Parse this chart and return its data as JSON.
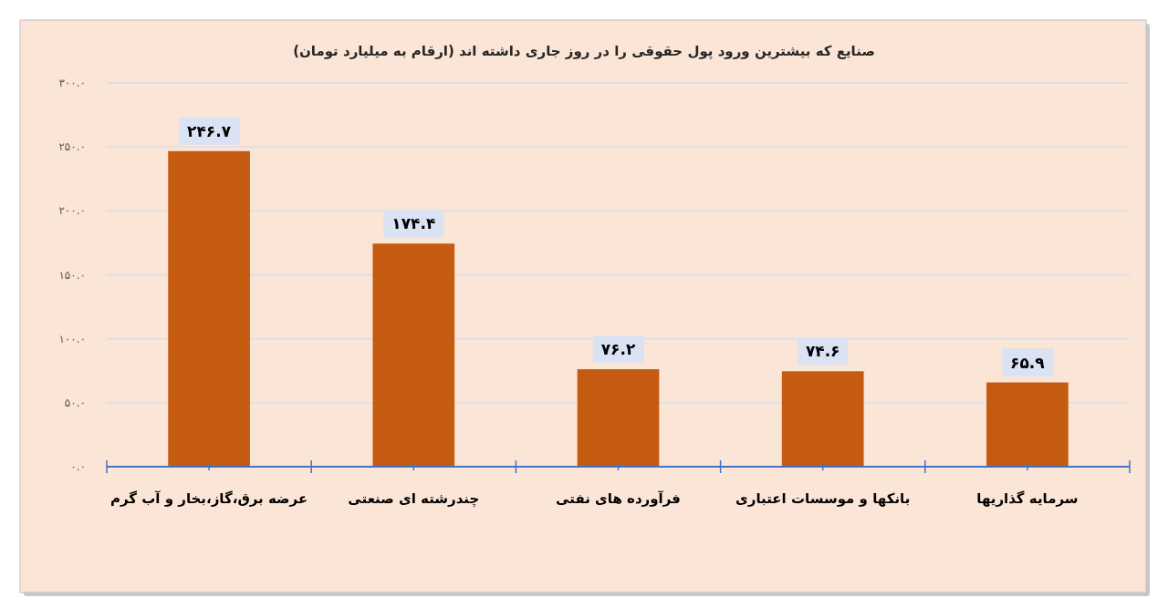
{
  "chart_data": {
    "type": "bar",
    "title": "صنایع که بیشترین ورود پول حقوقی را در روز جاری داشته اند (ارقام به میلیارد تومان)",
    "categories": [
      "عرضه برق،گاز،بخار و آب گرم",
      "چندرشته ای صنعتی",
      "فرآورده های نفتی",
      "بانکها و موسسات اعتباری",
      "سرمایه گذاریها"
    ],
    "values": [
      246.7,
      174.4,
      76.2,
      74.6,
      65.9
    ],
    "value_labels": [
      "۲۴۶.۷",
      "۱۷۴.۴",
      "۷۶.۲",
      "۷۴.۶",
      "۶۵.۹"
    ],
    "color": "#c55a11",
    "ylim": [
      0,
      300
    ],
    "yticks": [
      {
        "value": 0,
        "label": "۰.۰"
      },
      {
        "value": 50,
        "label": "۵۰.۰"
      },
      {
        "value": 100,
        "label": "۱۰۰.۰"
      },
      {
        "value": 150,
        "label": "۱۵۰.۰"
      },
      {
        "value": 200,
        "label": "۲۰۰.۰"
      },
      {
        "value": 250,
        "label": "۲۵۰.۰"
      },
      {
        "value": 300,
        "label": "۳۰۰.۰"
      }
    ],
    "grid": "y"
  }
}
